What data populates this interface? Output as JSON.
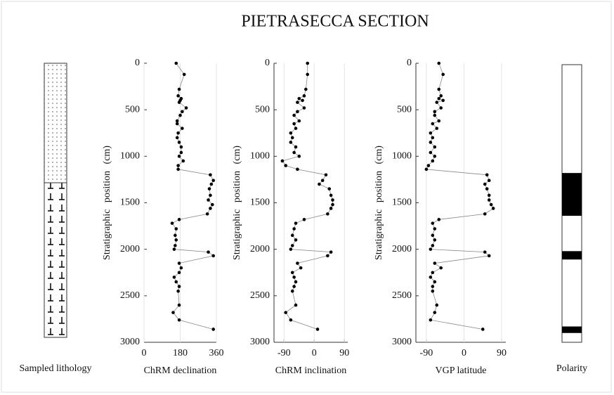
{
  "title": "PIETRASECCA SECTION",
  "lithology": {
    "label": "Sampled lithology"
  },
  "polarity": {
    "label": "Polarity",
    "normal_intervals": [
      [
        1180,
        1640
      ],
      [
        2020,
        2110
      ],
      [
        2830,
        2900
      ]
    ],
    "ylim": [
      0,
      3000
    ]
  },
  "chart_data": [
    {
      "type": "scatter",
      "xlabel": "ChRM declination",
      "ylabel": "Stratigraphic position (cm)",
      "color": "#000000",
      "y_inverted": true,
      "xlim": [
        0,
        360
      ],
      "xticks": [
        0,
        180,
        360
      ],
      "ylim": [
        0,
        3000
      ],
      "yticks": [
        0,
        500,
        1000,
        1500,
        2000,
        2500,
        3000
      ],
      "positions": [
        0,
        120,
        280,
        350,
        380,
        400,
        420,
        480,
        520,
        560,
        620,
        650,
        700,
        750,
        800,
        850,
        900,
        960,
        1000,
        1050,
        1100,
        1140,
        1200,
        1260,
        1300,
        1350,
        1420,
        1470,
        1520,
        1560,
        1620,
        1680,
        1720,
        1780,
        1850,
        1900,
        1960,
        2000,
        2030,
        2070,
        2150,
        2200,
        2250,
        2300,
        2350,
        2400,
        2450,
        2600,
        2680,
        2760,
        2860
      ],
      "values": [
        160,
        200,
        175,
        170,
        185,
        180,
        175,
        210,
        190,
        180,
        165,
        165,
        190,
        170,
        165,
        175,
        185,
        185,
        175,
        195,
        170,
        170,
        330,
        345,
        335,
        325,
        330,
        320,
        340,
        330,
        315,
        175,
        140,
        160,
        155,
        160,
        155,
        150,
        320,
        345,
        175,
        185,
        175,
        150,
        160,
        175,
        170,
        175,
        145,
        175,
        345
      ]
    },
    {
      "type": "scatter",
      "xlabel": "ChRM inclination",
      "ylabel": "Stratigraphic position (cm)",
      "color": "#000000",
      "y_inverted": true,
      "xlim": [
        -120,
        100
      ],
      "xticks": [
        -90,
        0,
        90
      ],
      "ylim": [
        0,
        3000
      ],
      "yticks": [
        0,
        500,
        1000,
        1500,
        2000,
        2500,
        3000
      ],
      "positions": [
        0,
        120,
        280,
        350,
        380,
        400,
        420,
        480,
        520,
        560,
        620,
        650,
        700,
        750,
        800,
        850,
        900,
        960,
        1000,
        1050,
        1100,
        1140,
        1200,
        1260,
        1300,
        1350,
        1420,
        1470,
        1520,
        1560,
        1620,
        1680,
        1720,
        1780,
        1850,
        1900,
        1960,
        2000,
        2030,
        2070,
        2150,
        2200,
        2250,
        2300,
        2350,
        2400,
        2450,
        2600,
        2680,
        2760,
        2860
      ],
      "values": [
        -20,
        -20,
        -25,
        -30,
        -45,
        -35,
        -50,
        -30,
        -50,
        -60,
        -45,
        -60,
        -55,
        -70,
        -65,
        -70,
        -55,
        -60,
        -45,
        -95,
        -85,
        -50,
        35,
        25,
        15,
        45,
        50,
        55,
        55,
        50,
        40,
        -30,
        -55,
        -60,
        -65,
        -55,
        -65,
        -70,
        50,
        40,
        -50,
        -40,
        -65,
        -60,
        -55,
        -60,
        -65,
        -55,
        -85,
        -70,
        10
      ]
    },
    {
      "type": "scatter",
      "xlabel": "VGP latitude",
      "ylabel": "Stratigraphic position (cm)",
      "color": "#000000",
      "y_inverted": true,
      "xlim": [
        -115,
        100
      ],
      "xticks": [
        -90,
        0,
        90
      ],
      "ylim": [
        0,
        3000
      ],
      "yticks": [
        0,
        500,
        1000,
        1500,
        2000,
        2500,
        3000
      ],
      "positions": [
        0,
        120,
        280,
        350,
        380,
        400,
        420,
        480,
        520,
        560,
        620,
        650,
        700,
        750,
        800,
        850,
        900,
        960,
        1000,
        1050,
        1100,
        1140,
        1200,
        1260,
        1300,
        1350,
        1420,
        1470,
        1520,
        1560,
        1620,
        1680,
        1720,
        1780,
        1850,
        1900,
        1960,
        2000,
        2030,
        2070,
        2150,
        2200,
        2250,
        2300,
        2350,
        2400,
        2450,
        2600,
        2680,
        2760,
        2860
      ],
      "values": [
        -60,
        -50,
        -60,
        -55,
        -60,
        -50,
        -65,
        -55,
        -70,
        -70,
        -60,
        -75,
        -65,
        -80,
        -75,
        -80,
        -70,
        -80,
        -70,
        -75,
        -85,
        -90,
        55,
        60,
        50,
        55,
        60,
        60,
        65,
        70,
        50,
        -60,
        -75,
        -70,
        -75,
        -70,
        -75,
        -80,
        50,
        60,
        -70,
        -55,
        -75,
        -80,
        -70,
        -75,
        -75,
        -65,
        -70,
        -80,
        45
      ]
    }
  ]
}
